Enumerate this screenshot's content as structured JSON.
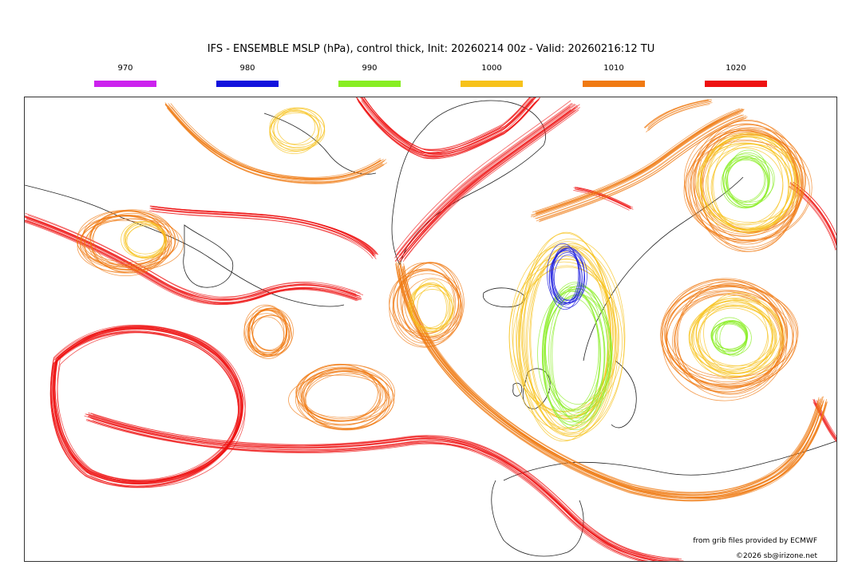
{
  "title": "IFS - ENSEMBLE MSLP (hPa), control thick, Init: 20260214 00z - Valid: 20260216:12 TU",
  "legend": [
    {
      "label": "970",
      "color": "#cc22ee"
    },
    {
      "label": "980",
      "color": "#1111dd"
    },
    {
      "label": "990",
      "color": "#88ee22"
    },
    {
      "label": "1000",
      "color": "#f7c21a"
    },
    {
      "label": "1010",
      "color": "#f07a12"
    },
    {
      "label": "1020",
      "color": "#ee1111"
    }
  ],
  "credits": {
    "source": "from grib files provided by ECMWF",
    "copyright": "©2026 sb@irizone.net"
  }
}
